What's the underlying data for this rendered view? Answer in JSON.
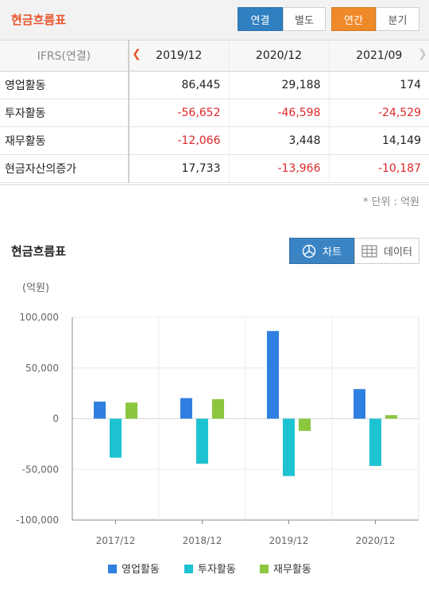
{
  "header": {
    "title": "현금흐름표",
    "consolidated_label": "연결",
    "separate_label": "별도",
    "annual_label": "연간",
    "quarterly_label": "분기"
  },
  "table": {
    "corner_label": "IFRS(연결)",
    "periods": [
      "2019/12",
      "2020/12",
      "2021/09"
    ],
    "rows": [
      {
        "label": "영업활동",
        "values": [
          "86,445",
          "29,188",
          "174"
        ]
      },
      {
        "label": "투자활동",
        "values": [
          "-56,652",
          "-46,598",
          "-24,529"
        ]
      },
      {
        "label": "재무활동",
        "values": [
          "-12,066",
          "3,448",
          "14,149"
        ]
      },
      {
        "label": "현금자산의증가",
        "values": [
          "17,733",
          "-13,966",
          "-10,187"
        ]
      }
    ],
    "unit_note": "* 단위 : 억원"
  },
  "section": {
    "title": "현금흐름표",
    "chart_tab_label": "차트",
    "data_tab_label": "데이터"
  },
  "colors": {
    "accent_title": "#e8542b",
    "negative": "#e02727",
    "series_operating": "#2e7fe0",
    "series_investing": "#1ec3d1",
    "series_financing": "#8cc63f"
  },
  "chart_data": {
    "type": "bar",
    "ylabel": "(억원)",
    "categories": [
      "2017/12",
      "2018/12",
      "2019/12",
      "2020/12"
    ],
    "series": [
      {
        "name": "영업활동",
        "values": [
          16800,
          20300,
          86445,
          29188
        ]
      },
      {
        "name": "투자활동",
        "values": [
          -38500,
          -44500,
          -56652,
          -46598
        ]
      },
      {
        "name": "재무활동",
        "values": [
          15900,
          19200,
          -12066,
          3448
        ]
      }
    ],
    "ylim": [
      -100000,
      100000
    ],
    "yticks": [
      100000,
      50000,
      0,
      -50000,
      -100000
    ],
    "ytick_labels": [
      "100,000",
      "50,000",
      "0",
      "-50,000",
      "-100,000"
    ],
    "grid": true,
    "legend": "bottom"
  }
}
